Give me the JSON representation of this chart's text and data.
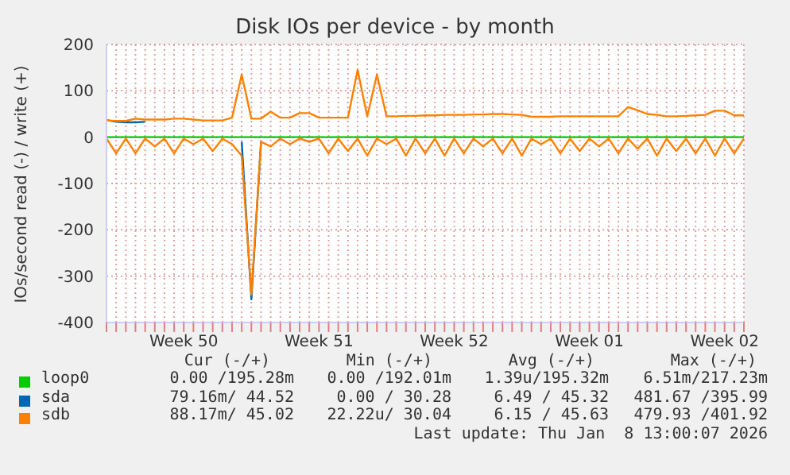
{
  "chart_data": {
    "type": "line",
    "title": "Disk IOs per device - by month",
    "ylabel": "IOs/second read (-) / write (+)",
    "categories": [
      null,
      null,
      null,
      null,
      null,
      null,
      null,
      null,
      "Week 50",
      null,
      null,
      null,
      null,
      null,
      null,
      null,
      null,
      null,
      null,
      null,
      null,
      null,
      "Week 51",
      null,
      null,
      null,
      null,
      null,
      null,
      null,
      null,
      null,
      null,
      null,
      null,
      null,
      "Week 52",
      null,
      null,
      null,
      null,
      null,
      null,
      null,
      null,
      null,
      null,
      null,
      null,
      null,
      "Week 01",
      null,
      null,
      null,
      null,
      null,
      null,
      null,
      null,
      null,
      null,
      null,
      null,
      null,
      "Week 02",
      null,
      null
    ],
    "ylim": [
      -400,
      200
    ],
    "yticks": [
      -400,
      -300,
      -200,
      -100,
      0,
      100,
      200
    ],
    "grid": true,
    "legend": "bottom",
    "marker": "none",
    "line_style": "solid",
    "series": [
      {
        "name": "loop0",
        "color": "#00cc00",
        "values": [
          0,
          0,
          0,
          0,
          0,
          0,
          0,
          0,
          0,
          0,
          0,
          0,
          0,
          0,
          0,
          0,
          0,
          0,
          0,
          0,
          0,
          0,
          0,
          0,
          0,
          0,
          0,
          0,
          0,
          0,
          0,
          0,
          0,
          0,
          0,
          0,
          0,
          0,
          0,
          0,
          0,
          0,
          0,
          0,
          0,
          0,
          0,
          0,
          0,
          0,
          0,
          0,
          0,
          0,
          0,
          0,
          0,
          0,
          0,
          0,
          0,
          0,
          0,
          0,
          0,
          0,
          0
        ]
      },
      {
        "name": "sda",
        "color": "#0066b3",
        "values": [
          37,
          33,
          32,
          32,
          33,
          null,
          null,
          null,
          null,
          null,
          null,
          null,
          null,
          null,
          null,
          null,
          null,
          null,
          null,
          null,
          null,
          null,
          null,
          null,
          null,
          null,
          null,
          null,
          null,
          null,
          null,
          null,
          null,
          null,
          null,
          null,
          null,
          null,
          null,
          null,
          null,
          null,
          null,
          null,
          null,
          null,
          null,
          null,
          null,
          null,
          null,
          null,
          null,
          null,
          null,
          null,
          null,
          null,
          null,
          null,
          null,
          null,
          null,
          null,
          null,
          null,
          null
        ]
      },
      {
        "name": "sdb",
        "color": "#ff8000",
        "values": [
          36,
          35,
          35,
          40,
          38,
          38,
          38,
          40,
          40,
          38,
          36,
          36,
          36,
          42,
          135,
          40,
          40,
          55,
          42,
          42,
          52,
          52,
          42,
          42,
          42,
          42,
          145,
          45,
          135,
          45,
          45,
          46,
          46,
          47,
          47,
          48,
          48,
          48,
          49,
          49,
          50,
          50,
          49,
          48,
          44,
          44,
          44,
          45,
          45,
          45,
          45,
          45,
          45,
          45,
          65,
          58,
          50,
          48,
          45,
          45,
          46,
          47,
          48,
          57,
          57,
          47,
          47
        ]
      },
      {
        "color": "#0066b3",
        "values": [
          null,
          null,
          null,
          null,
          null,
          null,
          null,
          null,
          null,
          null,
          null,
          null,
          null,
          null,
          -10,
          -350,
          -10,
          null,
          null,
          null,
          null,
          null,
          null,
          null,
          null,
          null,
          null,
          null,
          null,
          null,
          null,
          null,
          null,
          null,
          null,
          null,
          null,
          null,
          null,
          null,
          null,
          null,
          null,
          null,
          null,
          null,
          null,
          null,
          null,
          null,
          null,
          null,
          null,
          null,
          null,
          null,
          null,
          null,
          null,
          null,
          null,
          null,
          null,
          null,
          null,
          null,
          null
        ]
      },
      {
        "color": "#ff8000",
        "values": [
          -3,
          -35,
          -3,
          -35,
          -3,
          -20,
          -3,
          -35,
          -3,
          -15,
          -3,
          -30,
          -3,
          -15,
          -40,
          -340,
          -10,
          -20,
          -3,
          -15,
          -3,
          -10,
          -3,
          -35,
          -3,
          -30,
          -3,
          -40,
          -3,
          -15,
          -3,
          -40,
          -3,
          -35,
          -3,
          -40,
          -3,
          -35,
          -3,
          -20,
          -3,
          -35,
          -3,
          -40,
          -3,
          -15,
          -3,
          -35,
          -3,
          -30,
          -3,
          -20,
          -3,
          -35,
          -3,
          -25,
          -3,
          -40,
          -3,
          -30,
          -3,
          -35,
          -3,
          -40,
          -3,
          -35,
          -3
        ]
      }
    ],
    "annotations": [
      "Cur (-/+)",
      "Min (-/+)",
      "Avg (-/+)",
      "Max (-/+)",
      "0.00 /195.28m",
      "0.00 /192.01m",
      "1.39u/195.32m",
      "6.51m/217.23m",
      "79.16m/ 44.52",
      "0.00 / 30.28",
      "6.49 / 45.32",
      "481.67 /395.99",
      "88.17m/ 45.02",
      "22.22u/ 30.04",
      "6.15 / 45.63",
      "479.93 /401.92",
      "Last update: Thu Jan  8 13:00:07 2026"
    ]
  }
}
